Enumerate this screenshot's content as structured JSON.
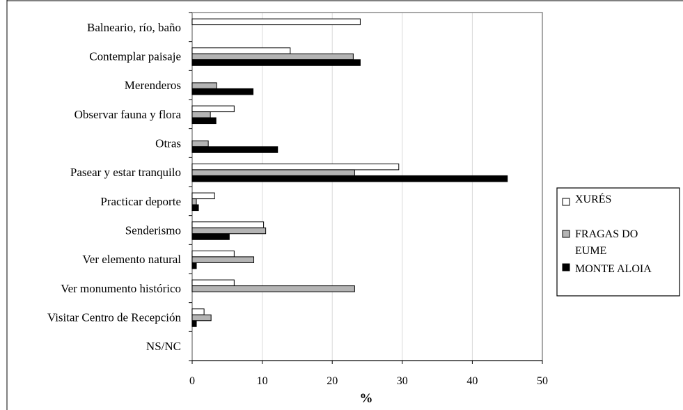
{
  "chart_data": {
    "type": "bar",
    "orientation": "horizontal",
    "categories": [
      "Balneario, río, baño",
      "Contemplar paisaje",
      "Merenderos",
      "Observar fauna y flora",
      "Otras",
      "Pasear y estar tranquilo",
      "Practicar deporte",
      "Senderismo",
      "Ver elemento natural",
      "Ver monumento histórico",
      "Visitar Centro de Recepción",
      "NS/NC"
    ],
    "series": [
      {
        "name": "XURÉS",
        "color": "#ffffff",
        "values": [
          24,
          14,
          0,
          6,
          0,
          29.5,
          3.2,
          10.2,
          6,
          6,
          1.7,
          0
        ]
      },
      {
        "name": "FRAGAS DO EUME",
        "color": "#b4b4b4",
        "values": [
          0,
          23,
          3.5,
          2.6,
          2.3,
          23.2,
          0.6,
          10.5,
          8.8,
          23.2,
          2.7,
          0
        ]
      },
      {
        "name": "MONTE ALOIA",
        "color": "#000000",
        "values": [
          0,
          24,
          8.7,
          3.4,
          12.2,
          45,
          0.9,
          5.3,
          0.6,
          0,
          0.6,
          0
        ]
      }
    ],
    "xaxis": {
      "title": "%",
      "range": [
        0,
        50
      ],
      "ticks": [
        0,
        10,
        20,
        30,
        40,
        50
      ]
    },
    "grid": true,
    "legend": {
      "position": "right"
    }
  }
}
